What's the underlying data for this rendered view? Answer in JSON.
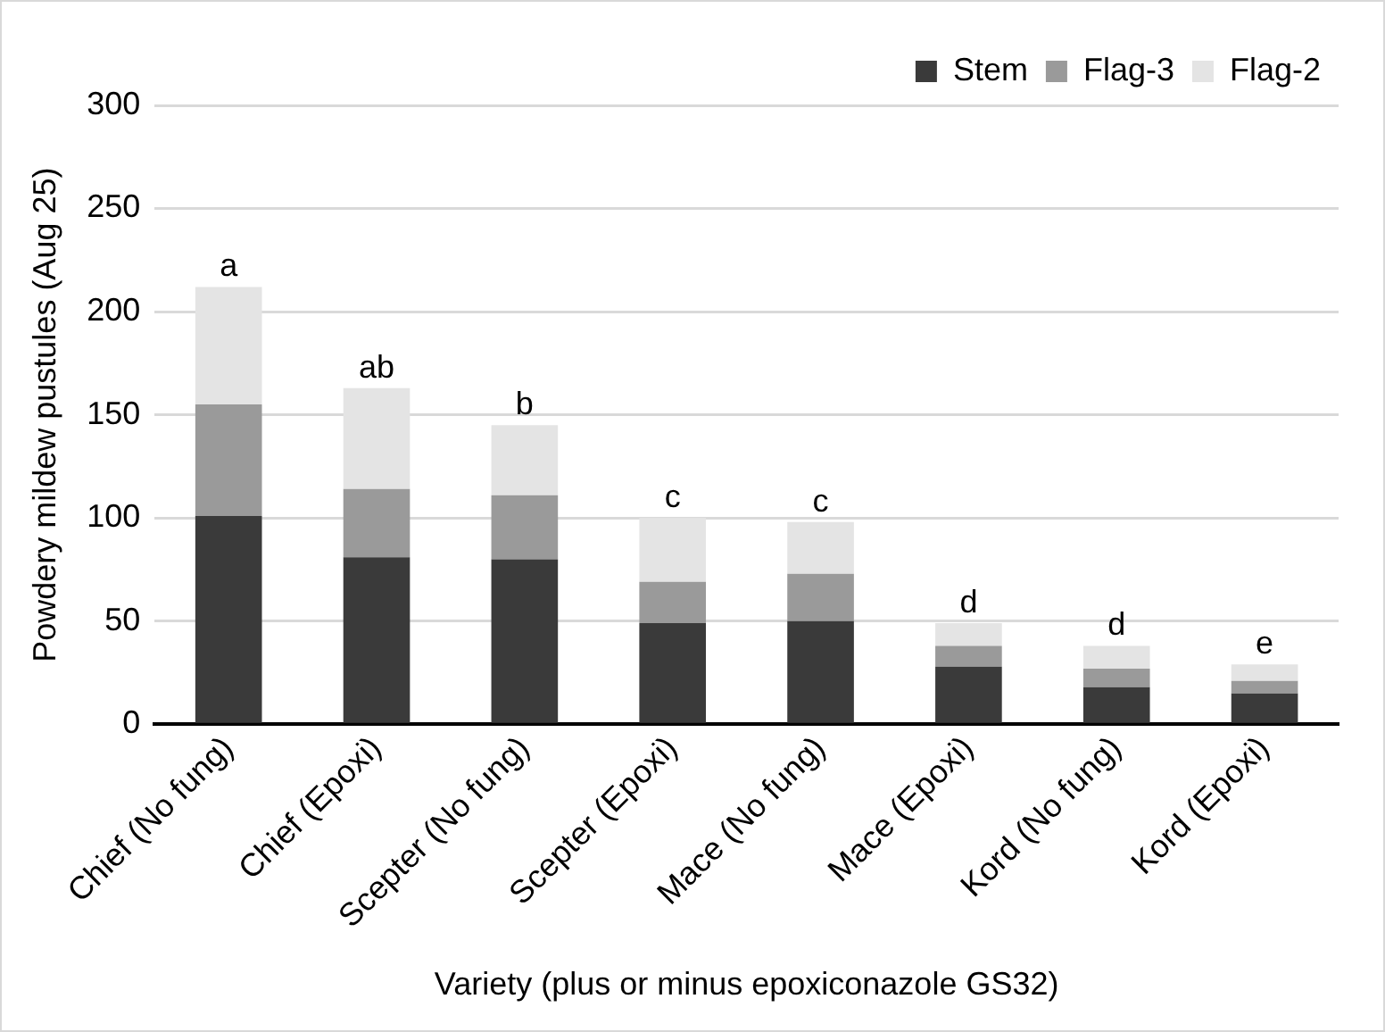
{
  "chart_data": {
    "type": "bar",
    "stacked": true,
    "xlabel": "Variety (plus or minus epoxiconazole GS32)",
    "ylabel": "Powdery mildew pustules (Aug 25)",
    "categories": [
      "Chief (No fung)",
      "Chief (Epoxi)",
      "Scepter (No fung)",
      "Scepter (Epoxi)",
      "Mace (No fung)",
      "Mace (Epoxi)",
      "Kord (No fung)",
      "Kord (Epoxi)"
    ],
    "series": [
      {
        "name": "Stem",
        "color": "#3a3a3a",
        "values": [
          101,
          81,
          80,
          49,
          50,
          28,
          18,
          15
        ]
      },
      {
        "name": "Flag-3",
        "color": "#9a9a9a",
        "values": [
          54,
          33,
          31,
          20,
          23,
          10,
          9,
          6
        ]
      },
      {
        "name": "Flag-2",
        "color": "#e4e4e4",
        "values": [
          57,
          49,
          34,
          31,
          25,
          11,
          11,
          8
        ]
      }
    ],
    "ylim": [
      0,
      300
    ],
    "yticks": [
      0,
      50,
      100,
      150,
      200,
      250,
      300
    ],
    "grid": "y",
    "legend": "top right",
    "annotations": [
      {
        "text": "a",
        "x": "Chief (No fung)",
        "y": 212
      },
      {
        "text": "ab",
        "x": "Chief (Epoxi)",
        "y": 163
      },
      {
        "text": "b",
        "x": "Scepter (No fung)",
        "y": 145
      },
      {
        "text": "c",
        "x": "Scepter (Epoxi)",
        "y": 100
      },
      {
        "text": "c",
        "x": "Mace (No fung)",
        "y": 98
      },
      {
        "text": "d",
        "x": "Mace (Epoxi)",
        "y": 49
      },
      {
        "text": "d",
        "x": "Kord (No fung)",
        "y": 38
      },
      {
        "text": "e",
        "x": "Kord (Epoxi)",
        "y": 29
      }
    ]
  }
}
